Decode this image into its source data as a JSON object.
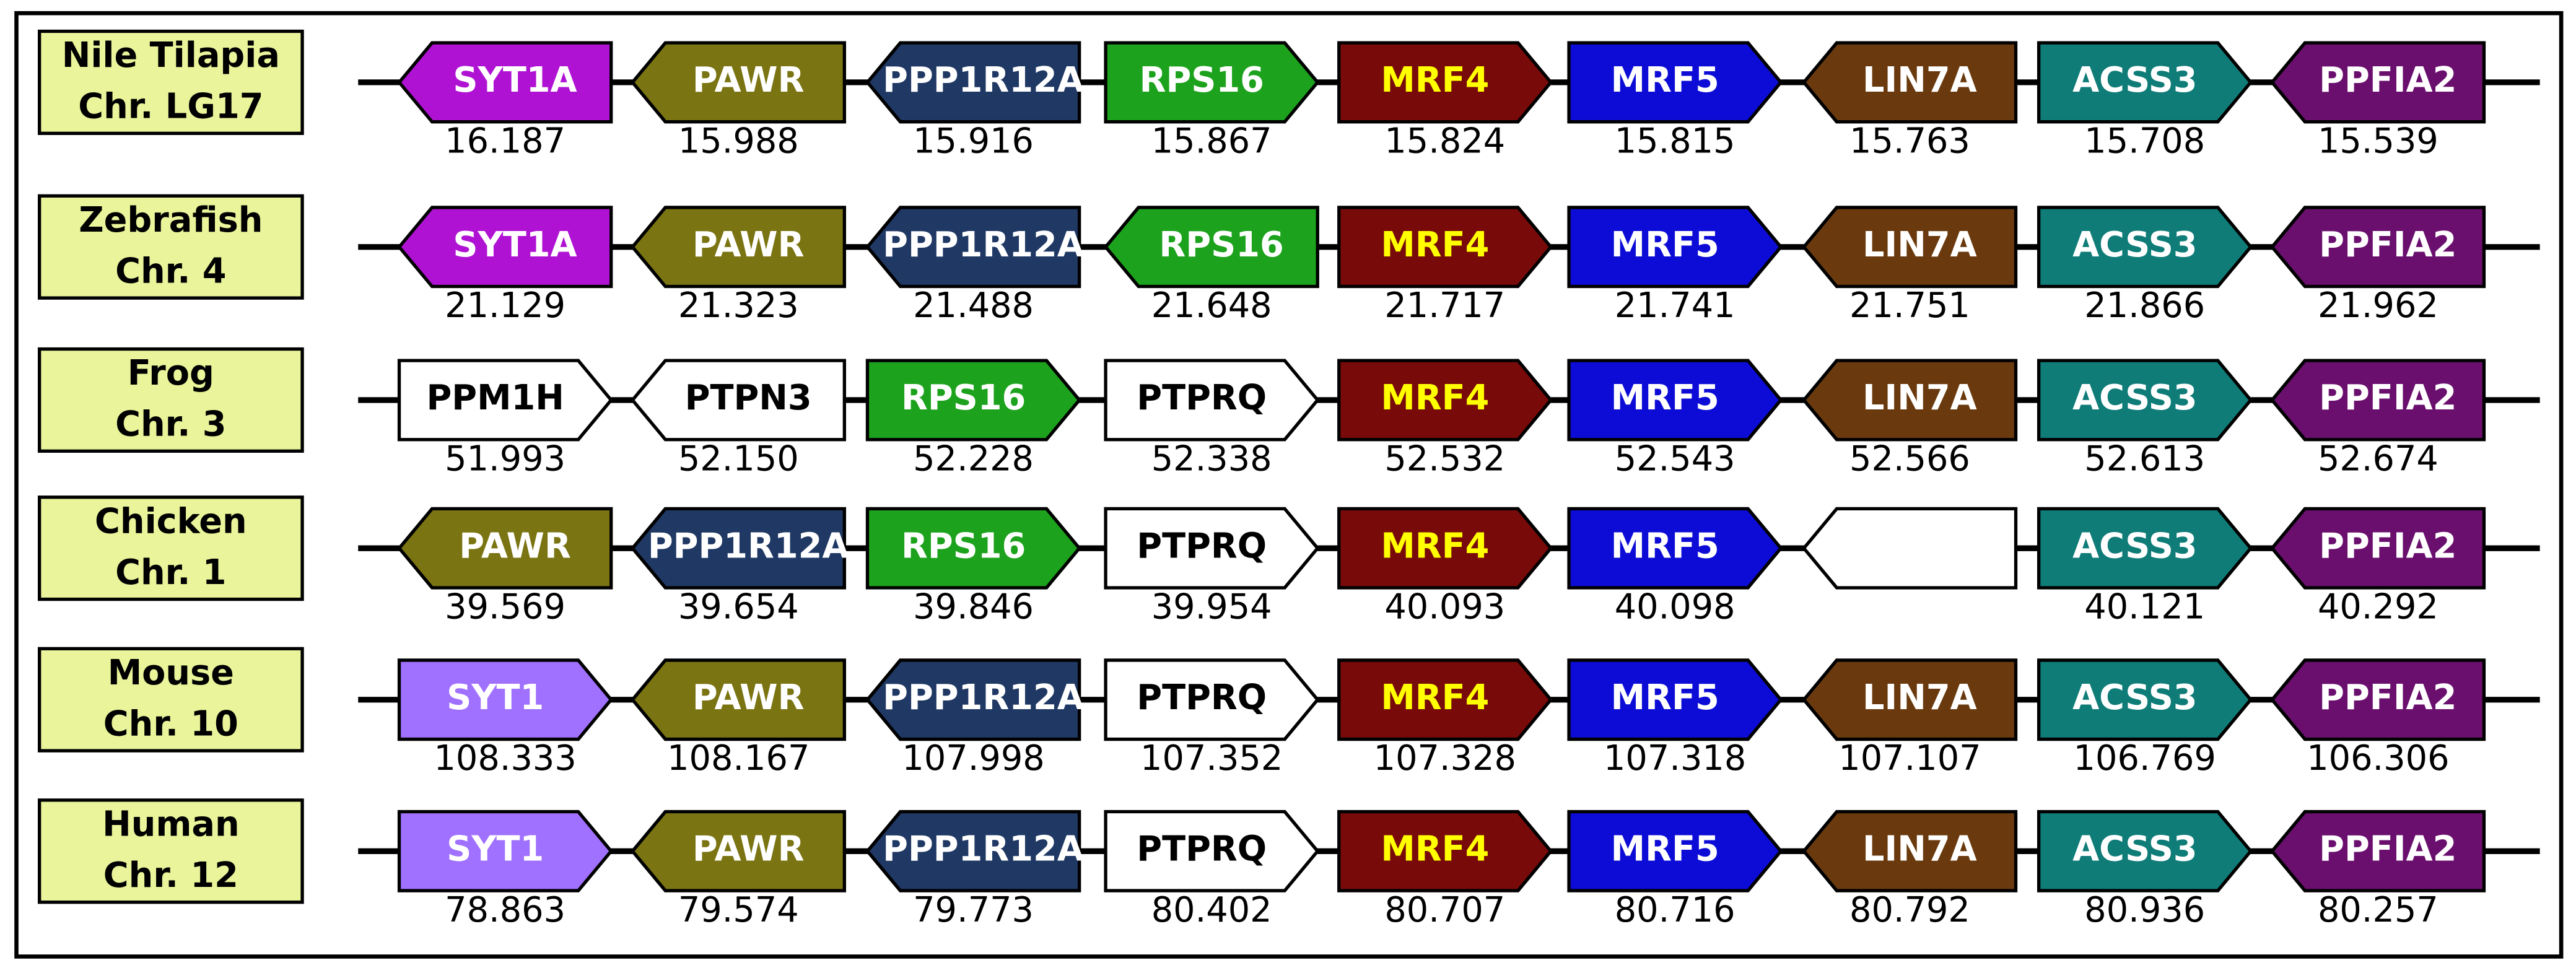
{
  "rows": [
    {
      "species": "Nile Tilapia",
      "chromosome": "Chr. LG17",
      "genes": [
        {
          "label": "SYT1A",
          "color": "#b012d4",
          "text_color": "#ffffff",
          "dir": "left",
          "position": "16.187"
        },
        {
          "label": "PAWR",
          "color": "#7a7412",
          "text_color": "#ffffff",
          "dir": "left",
          "position": "15.988"
        },
        {
          "label": "PPP1R12A",
          "color": "#1f3864",
          "text_color": "#ffffff",
          "dir": "left",
          "position": "15.916"
        },
        {
          "label": "RPS16",
          "color": "#1ca21c",
          "text_color": "#ffffff",
          "dir": "right",
          "position": "15.867"
        },
        {
          "label": "MRF4",
          "color": "#780a0a",
          "text_color": "#ffff00",
          "dir": "right",
          "position": "15.824"
        },
        {
          "label": "MRF5",
          "color": "#0c0cd6",
          "text_color": "#ffffff",
          "dir": "right",
          "position": "15.815"
        },
        {
          "label": "LIN7A",
          "color": "#6a3a0e",
          "text_color": "#ffffff",
          "dir": "left",
          "position": "15.763"
        },
        {
          "label": "ACSS3",
          "color": "#0f7c78",
          "text_color": "#ffffff",
          "dir": "right",
          "position": "15.708"
        },
        {
          "label": "PPFIA2",
          "color": "#6a0f6e",
          "text_color": "#ffffff",
          "dir": "left",
          "position": "15.539"
        }
      ]
    },
    {
      "species": "Zebrafish",
      "chromosome": "Chr. 4",
      "genes": [
        {
          "label": "SYT1A",
          "color": "#b012d4",
          "text_color": "#ffffff",
          "dir": "left",
          "position": "21.129"
        },
        {
          "label": "PAWR",
          "color": "#7a7412",
          "text_color": "#ffffff",
          "dir": "left",
          "position": "21.323"
        },
        {
          "label": "PPP1R12A",
          "color": "#1f3864",
          "text_color": "#ffffff",
          "dir": "left",
          "position": "21.488"
        },
        {
          "label": "RPS16",
          "color": "#1ca21c",
          "text_color": "#ffffff",
          "dir": "left",
          "position": "21.648"
        },
        {
          "label": "MRF4",
          "color": "#780a0a",
          "text_color": "#ffff00",
          "dir": "right",
          "position": "21.717"
        },
        {
          "label": "MRF5",
          "color": "#0c0cd6",
          "text_color": "#ffffff",
          "dir": "right",
          "position": "21.741"
        },
        {
          "label": "LIN7A",
          "color": "#6a3a0e",
          "text_color": "#ffffff",
          "dir": "left",
          "position": "21.751"
        },
        {
          "label": "ACSS3",
          "color": "#0f7c78",
          "text_color": "#ffffff",
          "dir": "right",
          "position": "21.866"
        },
        {
          "label": "PPFIA2",
          "color": "#6a0f6e",
          "text_color": "#ffffff",
          "dir": "left",
          "position": "21.962"
        }
      ]
    },
    {
      "species": "Frog",
      "chromosome": "Chr. 3",
      "genes": [
        {
          "label": "PPM1H",
          "color": "#ffffff",
          "text_color": "#000000",
          "dir": "right",
          "position": "51.993"
        },
        {
          "label": "PTPN3",
          "color": "#ffffff",
          "text_color": "#000000",
          "dir": "left",
          "position": "52.150"
        },
        {
          "label": "RPS16",
          "color": "#1ca21c",
          "text_color": "#ffffff",
          "dir": "right",
          "position": "52.228"
        },
        {
          "label": "PTPRQ",
          "color": "#ffffff",
          "text_color": "#000000",
          "dir": "right",
          "position": "52.338"
        },
        {
          "label": "MRF4",
          "color": "#780a0a",
          "text_color": "#ffff00",
          "dir": "right",
          "position": "52.532"
        },
        {
          "label": "MRF5",
          "color": "#0c0cd6",
          "text_color": "#ffffff",
          "dir": "right",
          "position": "52.543"
        },
        {
          "label": "LIN7A",
          "color": "#6a3a0e",
          "text_color": "#ffffff",
          "dir": "left",
          "position": "52.566"
        },
        {
          "label": "ACSS3",
          "color": "#0f7c78",
          "text_color": "#ffffff",
          "dir": "right",
          "position": "52.613"
        },
        {
          "label": "PPFIA2",
          "color": "#6a0f6e",
          "text_color": "#ffffff",
          "dir": "left",
          "position": "52.674"
        }
      ]
    },
    {
      "species": "Chicken",
      "chromosome": "Chr. 1",
      "genes": [
        {
          "label": "PAWR",
          "color": "#7a7412",
          "text_color": "#ffffff",
          "dir": "left",
          "position": "39.569"
        },
        {
          "label": "PPP1R12A",
          "color": "#1f3864",
          "text_color": "#ffffff",
          "dir": "left",
          "position": "39.654"
        },
        {
          "label": "RPS16",
          "color": "#1ca21c",
          "text_color": "#ffffff",
          "dir": "right",
          "position": "39.846"
        },
        {
          "label": "PTPRQ",
          "color": "#ffffff",
          "text_color": "#000000",
          "dir": "right",
          "position": "39.954"
        },
        {
          "label": "MRF4",
          "color": "#780a0a",
          "text_color": "#ffff00",
          "dir": "right",
          "position": "40.093"
        },
        {
          "label": "MRF5",
          "color": "#0c0cd6",
          "text_color": "#ffffff",
          "dir": "right",
          "position": "40.098"
        },
        {
          "color": "#ffffff",
          "dir": "left"
        },
        {
          "label": "ACSS3",
          "color": "#0f7c78",
          "text_color": "#ffffff",
          "dir": "right",
          "position": "40.121"
        },
        {
          "label": "PPFIA2",
          "color": "#6a0f6e",
          "text_color": "#ffffff",
          "dir": "left",
          "position": "40.292"
        }
      ]
    },
    {
      "species": "Mouse",
      "chromosome": "Chr. 10",
      "genes": [
        {
          "label": "SYT1",
          "color": "#a070ff",
          "text_color": "#ffffff",
          "dir": "right",
          "position": "108.333"
        },
        {
          "label": "PAWR",
          "color": "#7a7412",
          "text_color": "#ffffff",
          "dir": "left",
          "position": "108.167"
        },
        {
          "label": "PPP1R12A",
          "color": "#1f3864",
          "text_color": "#ffffff",
          "dir": "left",
          "position": "107.998"
        },
        {
          "label": "PTPRQ",
          "color": "#ffffff",
          "text_color": "#000000",
          "dir": "right",
          "position": "107.352"
        },
        {
          "label": "MRF4",
          "color": "#780a0a",
          "text_color": "#ffff00",
          "dir": "right",
          "position": "107.328"
        },
        {
          "label": "MRF5",
          "color": "#0c0cd6",
          "text_color": "#ffffff",
          "dir": "right",
          "position": "107.318"
        },
        {
          "label": "LIN7A",
          "color": "#6a3a0e",
          "text_color": "#ffffff",
          "dir": "left",
          "position": "107.107"
        },
        {
          "label": "ACSS3",
          "color": "#0f7c78",
          "text_color": "#ffffff",
          "dir": "right",
          "position": "106.769"
        },
        {
          "label": "PPFIA2",
          "color": "#6a0f6e",
          "text_color": "#ffffff",
          "dir": "left",
          "position": "106.306"
        }
      ]
    },
    {
      "species": "Human",
      "chromosome": "Chr. 12",
      "genes": [
        {
          "label": "SYT1",
          "color": "#a070ff",
          "text_color": "#ffffff",
          "dir": "right",
          "position": "78.863"
        },
        {
          "label": "PAWR",
          "color": "#7a7412",
          "text_color": "#ffffff",
          "dir": "left",
          "position": "79.574"
        },
        {
          "label": "PPP1R12A",
          "color": "#1f3864",
          "text_color": "#ffffff",
          "dir": "left",
          "position": "79.773"
        },
        {
          "label": "PTPRQ",
          "color": "#ffffff",
          "text_color": "#000000",
          "dir": "right",
          "position": "80.402"
        },
        {
          "label": "MRF4",
          "color": "#780a0a",
          "text_color": "#ffff00",
          "dir": "right",
          "position": "80.707"
        },
        {
          "label": "MRF5",
          "color": "#0c0cd6",
          "text_color": "#ffffff",
          "dir": "right",
          "position": "80.716"
        },
        {
          "label": "LIN7A",
          "color": "#6a3a0e",
          "text_color": "#ffffff",
          "dir": "left",
          "position": "80.792"
        },
        {
          "label": "ACSS3",
          "color": "#0f7c78",
          "text_color": "#ffffff",
          "dir": "right",
          "position": "80.936"
        },
        {
          "label": "PPFIA2",
          "color": "#6a0f6e",
          "text_color": "#ffffff",
          "dir": "left",
          "position": "80.257"
        }
      ]
    }
  ]
}
